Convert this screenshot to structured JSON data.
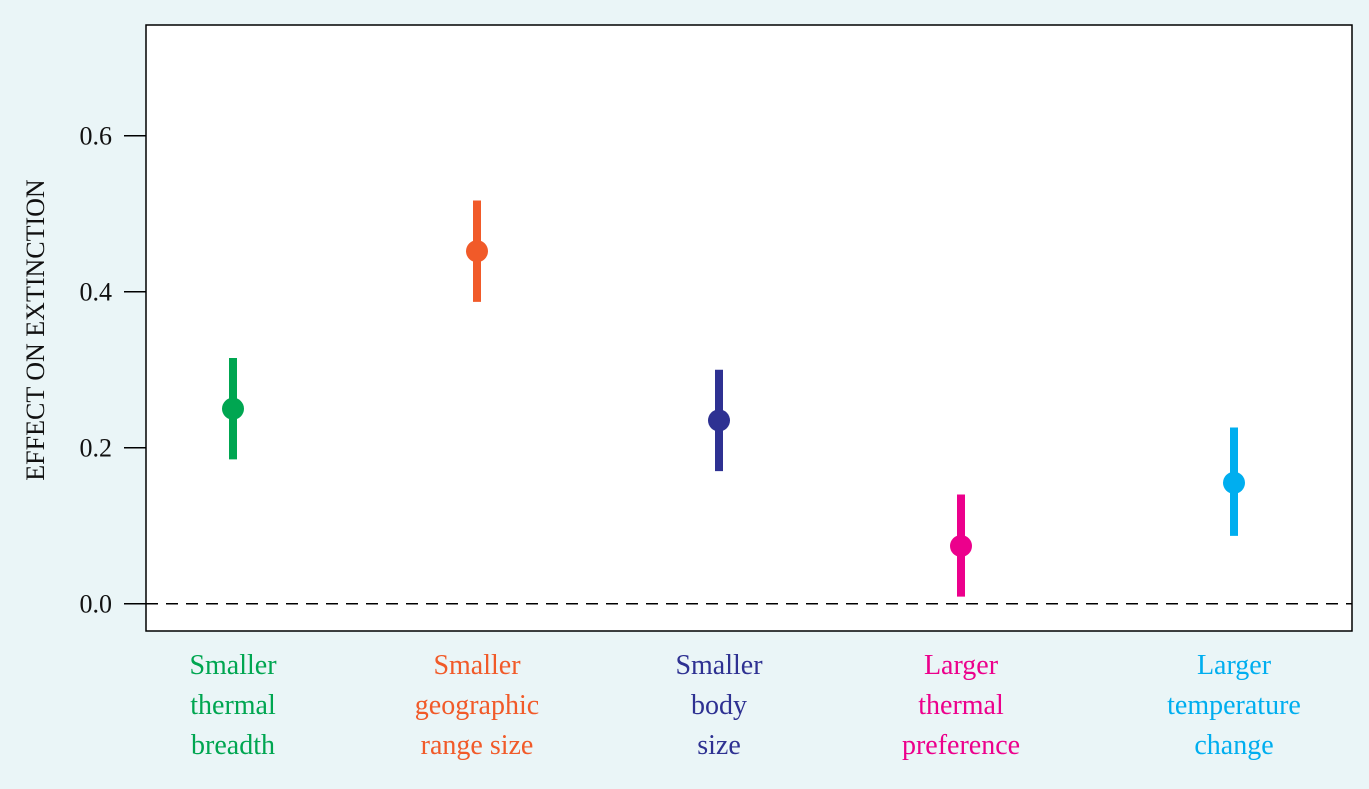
{
  "chart_data": {
    "type": "scatter",
    "title": "",
    "xlabel": "",
    "ylabel": "EFFECT ON EXTINCTION",
    "ylim": [
      -0.035,
      0.742
    ],
    "yticks": [
      "0.0",
      "0.2",
      "0.4",
      "0.6"
    ],
    "ytick_values": [
      0.0,
      0.2,
      0.4,
      0.6
    ],
    "reference_line": {
      "y": 0.0,
      "style": "dashed"
    },
    "grid": false,
    "points": [
      {
        "label_lines": [
          "Smaller",
          "thermal",
          "breadth"
        ],
        "value": 0.25,
        "lower": 0.185,
        "upper": 0.315,
        "color": "#00a651"
      },
      {
        "label_lines": [
          "Smaller",
          "geographic",
          "range size"
        ],
        "value": 0.452,
        "lower": 0.387,
        "upper": 0.517,
        "color": "#f15a29"
      },
      {
        "label_lines": [
          "Smaller",
          "body",
          "size"
        ],
        "value": 0.235,
        "lower": 0.17,
        "upper": 0.3,
        "color": "#2e3192"
      },
      {
        "label_lines": [
          "Larger",
          "thermal",
          "preference"
        ],
        "value": 0.074,
        "lower": 0.009,
        "upper": 0.14,
        "color": "#ec008c"
      },
      {
        "label_lines": [
          "Larger",
          "temperature",
          "change"
        ],
        "value": 0.155,
        "lower": 0.087,
        "upper": 0.226,
        "color": "#00aeef"
      }
    ]
  }
}
